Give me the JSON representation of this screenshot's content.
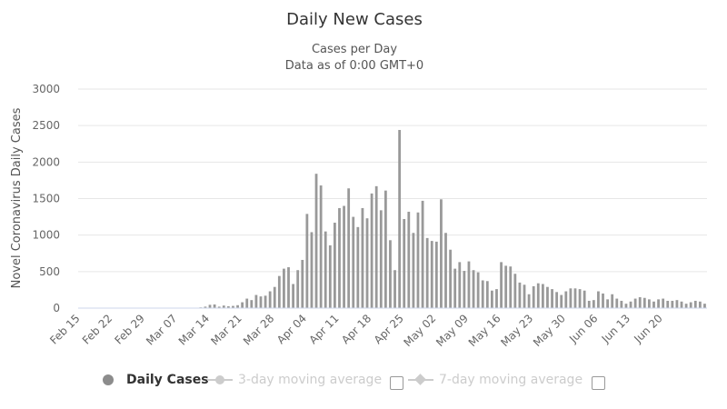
{
  "colors": {
    "bar": "#999999",
    "grid": "#e6e6e6",
    "axis": "#ccd6eb",
    "text": "#333333",
    "inactive": "#cccccc"
  },
  "chart_data": {
    "type": "bar",
    "title": "Daily New Cases",
    "subtitle_line1": "Cases per Day",
    "subtitle_line2": "Data as of 0:00 GMT+0",
    "ylabel": "Novel Coronavirus Daily Cases",
    "xlabel": "",
    "ylim": [
      0,
      3000
    ],
    "yticks": [
      0,
      500,
      1000,
      1500,
      2000,
      2500,
      3000
    ],
    "xtick_labels": [
      "Feb 15",
      "Feb 22",
      "Feb 29",
      "Mar 07",
      "Mar 14",
      "Mar 21",
      "Mar 28",
      "Apr 04",
      "Apr 11",
      "Apr 18",
      "Apr 25",
      "May 02",
      "May 09",
      "May 16",
      "May 23",
      "May 30",
      "Jun 06",
      "Jun 13",
      "Jun 20"
    ],
    "first_date": "Feb 15",
    "last_date": "Jun 20",
    "grid": true,
    "legend_position": "bottom",
    "series": [
      {
        "name": "Daily Cases",
        "values": [
          0,
          0,
          0,
          0,
          0,
          0,
          0,
          0,
          0,
          0,
          0,
          0,
          0,
          0,
          0,
          0,
          0,
          0,
          0,
          0,
          0,
          0,
          0,
          0,
          0,
          0,
          10,
          20,
          45,
          50,
          20,
          35,
          25,
          30,
          40,
          80,
          130,
          110,
          180,
          160,
          170,
          230,
          290,
          440,
          540,
          560,
          330,
          520,
          660,
          1290,
          1040,
          1840,
          1680,
          1050,
          860,
          1170,
          1370,
          1400,
          1640,
          1250,
          1110,
          1370,
          1230,
          1570,
          1670,
          1340,
          1610,
          930,
          520,
          2440,
          1220,
          1320,
          1030,
          1310,
          1470,
          960,
          920,
          910,
          1490,
          1030,
          800,
          540,
          630,
          510,
          640,
          520,
          490,
          380,
          370,
          240,
          260,
          630,
          580,
          570,
          470,
          350,
          320,
          190,
          300,
          340,
          330,
          290,
          260,
          220,
          180,
          230,
          270,
          270,
          260,
          240,
          100,
          110,
          230,
          200,
          120,
          190,
          130,
          100,
          60,
          90,
          130,
          150,
          140,
          120,
          90,
          120,
          130,
          100,
          100,
          110,
          90,
          60,
          80,
          100,
          90,
          60
        ]
      }
    ]
  },
  "legend": {
    "items": [
      {
        "label": "Daily Cases"
      },
      {
        "label": "3-day moving average"
      },
      {
        "label": "7-day moving average"
      }
    ]
  }
}
